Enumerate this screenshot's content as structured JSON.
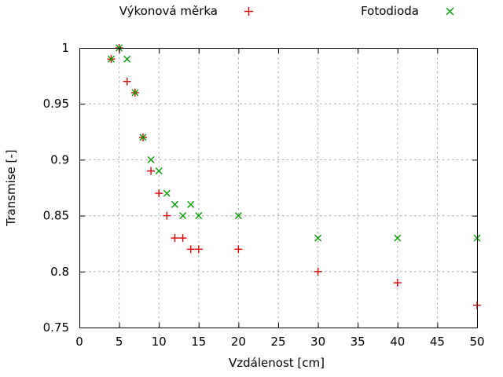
{
  "colors": {
    "background": "#ffffff",
    "axis": "#000000",
    "text": "#000000",
    "grid": "#aaaaaa",
    "series_red": "#e00000",
    "series_green": "#00a000"
  },
  "chart_data": {
    "type": "scatter",
    "title": "",
    "xlabel": "Vzdálenost [cm]",
    "ylabel": "Transmise [-]",
    "xlim": [
      0,
      50
    ],
    "ylim": [
      0.75,
      1.0
    ],
    "xticks": [
      0,
      5,
      10,
      15,
      20,
      25,
      30,
      35,
      40,
      45,
      50
    ],
    "xtick_labels": [
      "0",
      "5",
      "10",
      "15",
      "20",
      "25",
      "30",
      "35",
      "40",
      "45",
      "50"
    ],
    "yticks": [
      0.75,
      0.8,
      0.85,
      0.9,
      0.95,
      1
    ],
    "ytick_labels": [
      "0.75",
      "0.8",
      "0.85",
      "0.9",
      "0.95",
      "1"
    ],
    "grid": true,
    "legend_position": "top-outside",
    "series": [
      {
        "name": "Výkonová měrka",
        "marker": "plus",
        "color": "#e00000",
        "x": [
          4,
          5,
          6,
          7,
          8,
          9,
          10,
          11,
          12,
          13,
          14,
          15,
          20,
          30,
          40,
          50
        ],
        "y": [
          0.99,
          1.0,
          0.97,
          0.96,
          0.92,
          0.89,
          0.87,
          0.85,
          0.83,
          0.83,
          0.82,
          0.82,
          0.82,
          0.8,
          0.79,
          0.77
        ]
      },
      {
        "name": "Fotodioda",
        "marker": "cross",
        "color": "#00a000",
        "x": [
          4,
          5,
          6,
          7,
          8,
          9,
          10,
          11,
          12,
          13,
          14,
          15,
          20,
          30,
          40,
          50
        ],
        "y": [
          0.99,
          1.0,
          0.99,
          0.96,
          0.92,
          0.9,
          0.89,
          0.87,
          0.86,
          0.85,
          0.86,
          0.85,
          0.85,
          0.83,
          0.83,
          0.83
        ]
      }
    ]
  }
}
